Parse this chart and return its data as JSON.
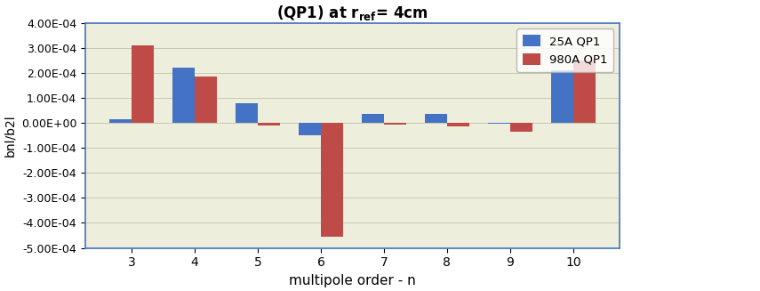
{
  "title": "(QP1) at r$_{ref}$= 4cm",
  "xlabel": "multipole order - n",
  "ylabel": "bnl/b2l",
  "categories": [
    "3",
    "4",
    "5",
    "6",
    "7",
    "8",
    "9",
    "10"
  ],
  "series_25A": [
    1.5e-05,
    0.00022,
    8e-05,
    -5e-05,
    3.5e-05,
    3.5e-05,
    -5e-06,
    0.00021
  ],
  "series_980A": [
    0.00031,
    0.000185,
    -1.2e-05,
    -0.000455,
    -8e-06,
    -1.5e-05,
    -3.5e-05,
    0.00025
  ],
  "color_25A": "#4472C4",
  "color_980A": "#BE4B48",
  "legend_25A": "25A QP1",
  "legend_980A": "980A QP1",
  "ylim": [
    -0.0005,
    0.0004
  ],
  "yticks": [
    -0.0005,
    -0.0004,
    -0.0003,
    -0.0002,
    -0.0001,
    0.0,
    0.0001,
    0.0002,
    0.0003,
    0.0004
  ],
  "fig_facecolor": "#FFFFFF",
  "plot_facecolor": "#EEEEDD",
  "bar_width": 0.35,
  "figsize": [
    8.55,
    3.27
  ],
  "dpi": 100
}
